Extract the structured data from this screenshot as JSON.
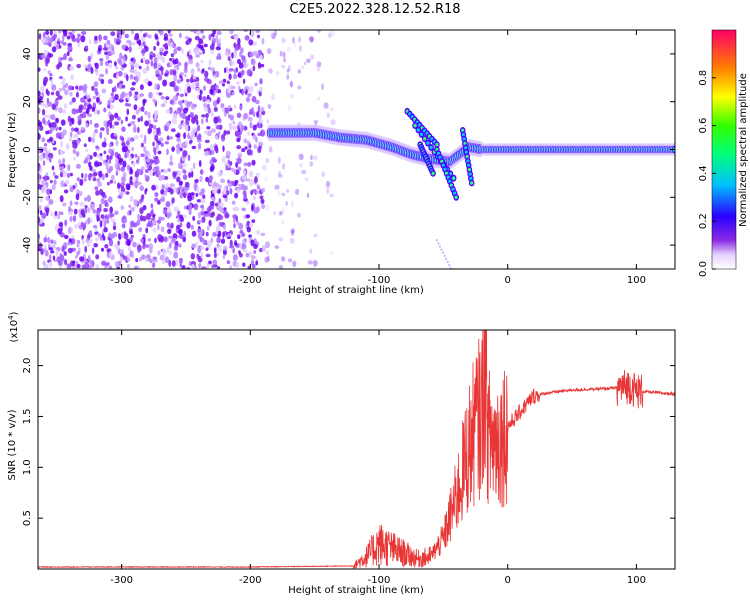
{
  "title": "C2E5.2022.328.12.52.R18",
  "chart_data": [
    {
      "type": "heatmap",
      "xlabel": "Height of straight line (km)",
      "ylabel": "Frequency (Hz)",
      "xlim": [
        -365,
        130
      ],
      "ylim": [
        -50,
        50
      ],
      "xticks": [
        -300,
        -200,
        -100,
        0,
        100
      ],
      "yticks": [
        -40,
        -20,
        0,
        20,
        40
      ],
      "colorbar": {
        "label": "Normalized spectral amplitude",
        "range": [
          0.0,
          1.0
        ],
        "ticks": [
          0.0,
          0.2,
          0.4,
          0.6,
          0.8
        ],
        "tick_labels": [
          "0.0",
          "0.2",
          "0.4",
          "0.6",
          "0.8"
        ]
      },
      "signal_track": {
        "x": [
          -185,
          -150,
          -130,
          -110,
          -90,
          -75,
          -60,
          -45,
          -30,
          -20,
          0,
          50,
          130
        ],
        "frequency": [
          7,
          7,
          5,
          4,
          1,
          -2,
          -4,
          -5,
          1,
          0,
          0,
          0,
          0
        ]
      }
    },
    {
      "type": "line",
      "xlabel": "Height of straight line (km)",
      "ylabel": "SNR (10 * v/v)",
      "y_multiplier": "(x10",
      "y_multiplier_exp": "4",
      "y_multiplier_close": ")",
      "xlim": [
        -365,
        130
      ],
      "ylim": [
        0,
        2.35
      ],
      "xticks": [
        -300,
        -200,
        -100,
        0,
        100
      ],
      "yticks": [
        0.5,
        1.0,
        1.5,
        2.0
      ],
      "ytick_labels": [
        "0.5",
        "1.0",
        "1.5",
        "2.0"
      ],
      "series": [
        {
          "name": "SNR",
          "color": "#e83535",
          "x": [
            -365,
            -300,
            -200,
            -120,
            -110,
            -100,
            -90,
            -80,
            -70,
            -60,
            -50,
            -45,
            -40,
            -35,
            -30,
            -25,
            -20,
            -18,
            -15,
            -10,
            -5,
            0,
            10,
            20,
            30,
            50,
            70,
            85,
            95,
            100,
            110,
            130
          ],
          "y": [
            0.02,
            0.02,
            0.02,
            0.03,
            0.12,
            0.25,
            0.2,
            0.15,
            0.1,
            0.12,
            0.3,
            0.5,
            0.7,
            0.95,
            1.2,
            1.4,
            1.55,
            2.1,
            1.3,
            1.25,
            1.3,
            1.4,
            1.55,
            1.7,
            1.73,
            1.76,
            1.77,
            1.78,
            1.8,
            1.75,
            1.74,
            1.72
          ]
        }
      ]
    }
  ],
  "colors": {
    "signal": "#e83535",
    "axis": "#000000"
  }
}
